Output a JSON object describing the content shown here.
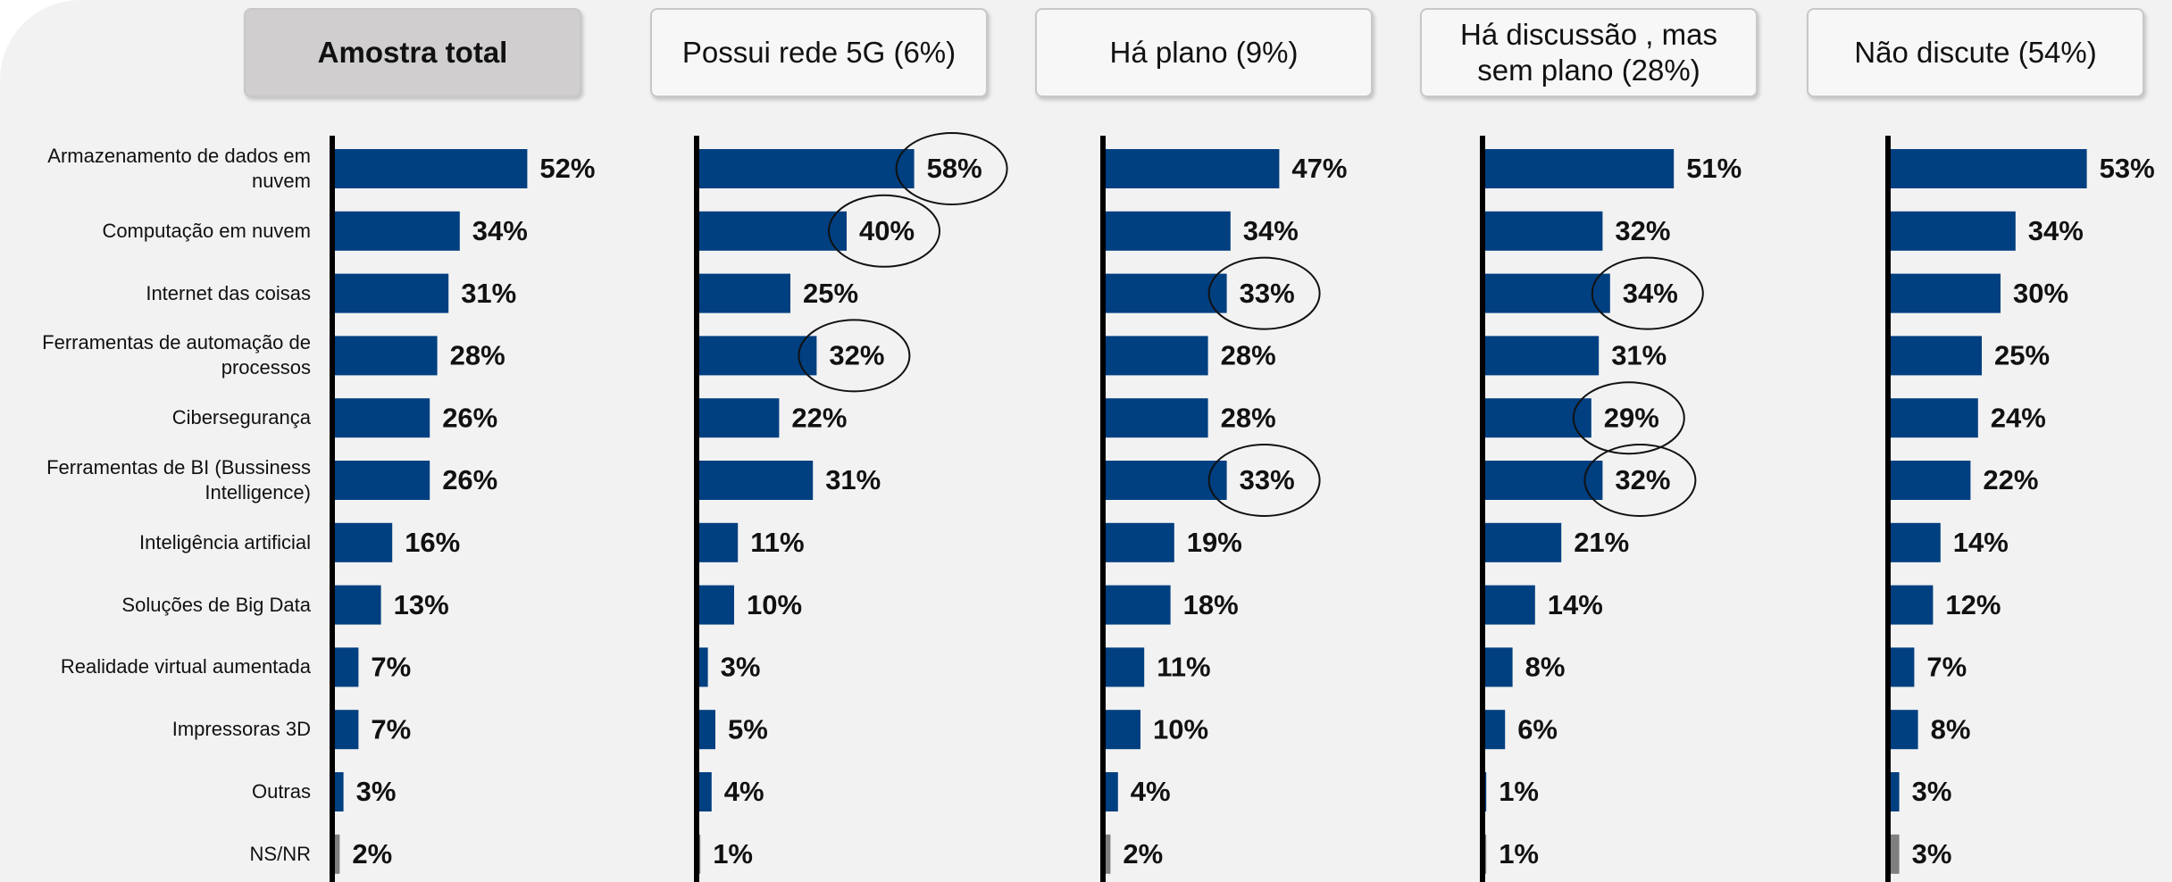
{
  "chart_data": {
    "type": "bar",
    "orientation": "horizontal",
    "categories": [
      "Armazenamento de dados em nuvem",
      "Computação em nuvem",
      "Internet das coisas",
      "Ferramentas de automação de processos",
      "Cibersegurança",
      "Ferramentas de BI (Bussiness Intelligence)",
      "Inteligência artificial",
      "Soluções de Big Data",
      "Realidade virtual aumentada",
      "Impressoras 3D",
      "Outras",
      "NS/NR"
    ],
    "color": "#003f80",
    "last_color": "#7f7f7f",
    "series": [
      {
        "name": "Amostra total",
        "emphasis": true,
        "values": [
          52,
          34,
          31,
          28,
          26,
          26,
          16,
          13,
          7,
          7,
          3,
          2
        ],
        "value_labels": [
          "52%",
          "34%",
          "31%",
          "28%",
          "26%",
          "26%",
          "16%",
          "13%",
          "7%",
          "7%",
          "3%",
          "2%"
        ],
        "highlight": []
      },
      {
        "name": "Possui rede 5G (6%)",
        "values": [
          58,
          40,
          25,
          32,
          22,
          31,
          11,
          10,
          3,
          5,
          4,
          1
        ],
        "value_labels": [
          "58%",
          "40%",
          "25%",
          "32%",
          "22%",
          "31%",
          "11%",
          "10%",
          "3%",
          "5%",
          "4%",
          "1%"
        ],
        "highlight": [
          0,
          1,
          3
        ]
      },
      {
        "name": "Há plano (9%)",
        "values": [
          47,
          34,
          33,
          28,
          28,
          33,
          19,
          18,
          11,
          10,
          4,
          2
        ],
        "value_labels": [
          "47%",
          "34%",
          "33%",
          "28%",
          "28%",
          "33%",
          "19%",
          "18%",
          "11%",
          "10%",
          "4%",
          "2%"
        ],
        "highlight": [
          2,
          5
        ]
      },
      {
        "name": "Há discussão , mas sem plano (28%)",
        "values": [
          51,
          32,
          34,
          31,
          29,
          32,
          21,
          14,
          8,
          6,
          1,
          1
        ],
        "value_labels": [
          "51%",
          "32%",
          "34%",
          "31%",
          "29%",
          "32%",
          "21%",
          "14%",
          "8%",
          "6%",
          "1%",
          "1%"
        ],
        "highlight": [
          2,
          4,
          5
        ]
      },
      {
        "name": "Não discute (54%)",
        "values": [
          53,
          34,
          30,
          25,
          24,
          22,
          14,
          12,
          7,
          8,
          3,
          3
        ],
        "value_labels": [
          "53%",
          "34%",
          "30%",
          "25%",
          "24%",
          "22%",
          "14%",
          "12%",
          "7%",
          "8%",
          "3%",
          "3%"
        ],
        "highlight": []
      }
    ]
  }
}
